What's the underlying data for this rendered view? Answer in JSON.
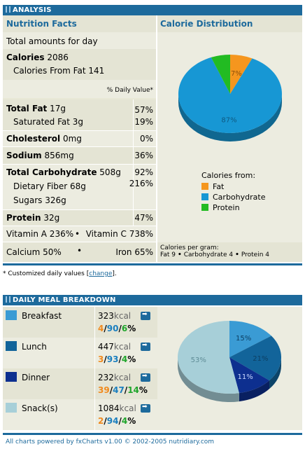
{
  "analysis": {
    "header": "ANALYSIS",
    "nutrition_title": "Nutrition Facts",
    "total_amounts": "Total amounts for day",
    "calories_label": "Calories",
    "calories_value": "2086",
    "calories_fat_label": "Calories From Fat",
    "calories_fat_value": "141",
    "daily_value_label": "% Daily Value*",
    "rows": {
      "total_fat": {
        "label": "Total Fat",
        "amount": "17g",
        "pct": "57%"
      },
      "sat_fat": {
        "label": "Saturated Fat",
        "amount": "3g",
        "pct": "19%"
      },
      "cholesterol": {
        "label": "Cholesterol",
        "amount": "0mg",
        "pct": "0%"
      },
      "sodium": {
        "label": "Sodium",
        "amount": "856mg",
        "pct": "36%"
      },
      "total_carb": {
        "label": "Total Carbohydrate",
        "amount": "508g",
        "pct": "92%"
      },
      "fiber": {
        "label": "Dietary Fiber",
        "amount": "68g",
        "pct": "216%"
      },
      "sugars": {
        "label": "Sugars",
        "amount": "326g"
      },
      "protein": {
        "label": "Protein",
        "amount": "32g",
        "pct": "47%"
      }
    },
    "vitamin_a": "Vitamin A 236%",
    "vitamin_c": "Vitamin C 738%",
    "calcium": "Calcium 50%",
    "iron": "Iron 65%",
    "bullet": "•"
  },
  "distribution": {
    "title": "Calorie Distribution",
    "slices": [
      {
        "label": "Fat",
        "value": 7,
        "text": "7%",
        "color": "#f5961e"
      },
      {
        "label": "Carbohydrate",
        "value": 87,
        "text": "87%",
        "color": "#1797d4"
      },
      {
        "label": "Protein",
        "value": 6,
        "text": "6%",
        "color": "#22bb22"
      }
    ],
    "legend_title": "Calories from:",
    "per_gram_title": "Calories per gram:",
    "fat_per_gram": "Fat 9",
    "carb_per_gram": "Carbohydrate 4",
    "protein_per_gram": "Protein 4"
  },
  "note": {
    "prefix": "* Customized daily values [",
    "link": "change",
    "suffix": "]."
  },
  "meals": {
    "header": "DAILY MEAL BREAKDOWN",
    "items": [
      {
        "name": "Breakfast",
        "kcal": "323",
        "unit": "kcal",
        "fat": "4",
        "carb": "90",
        "pro": "6",
        "pct_value": 15,
        "pct_text": "15%",
        "color": "#3a9bd4"
      },
      {
        "name": "Lunch",
        "kcal": "447",
        "unit": "kcal",
        "fat": "3",
        "carb": "93",
        "pro": "4",
        "pct_value": 21,
        "pct_text": "21%",
        "color": "#12649a"
      },
      {
        "name": "Dinner",
        "kcal": "232",
        "unit": "kcal",
        "fat": "39",
        "carb": "47",
        "pro": "14",
        "pct_value": 11,
        "pct_text": "11%",
        "color": "#0d2f8f"
      },
      {
        "name": "Snack(s)",
        "kcal": "1084",
        "unit": "kcal",
        "fat": "2",
        "carb": "94",
        "pro": "4",
        "pct_value": 53,
        "pct_text": "53%",
        "color": "#a7cfd8"
      }
    ],
    "percent_sign": "%",
    "slash": "/"
  },
  "chart_data": [
    {
      "type": "pie",
      "title": "Calorie Distribution",
      "categories": [
        "Fat",
        "Carbohydrate",
        "Protein"
      ],
      "values": [
        7,
        87,
        6
      ]
    },
    {
      "type": "pie",
      "title": "DAILY MEAL BREAKDOWN",
      "categories": [
        "Breakfast",
        "Lunch",
        "Dinner",
        "Snack(s)"
      ],
      "values": [
        15,
        21,
        11,
        53
      ]
    }
  ],
  "footer": "All charts powered by fxCharts v1.00 © 2002-2005 nutridiary.com"
}
